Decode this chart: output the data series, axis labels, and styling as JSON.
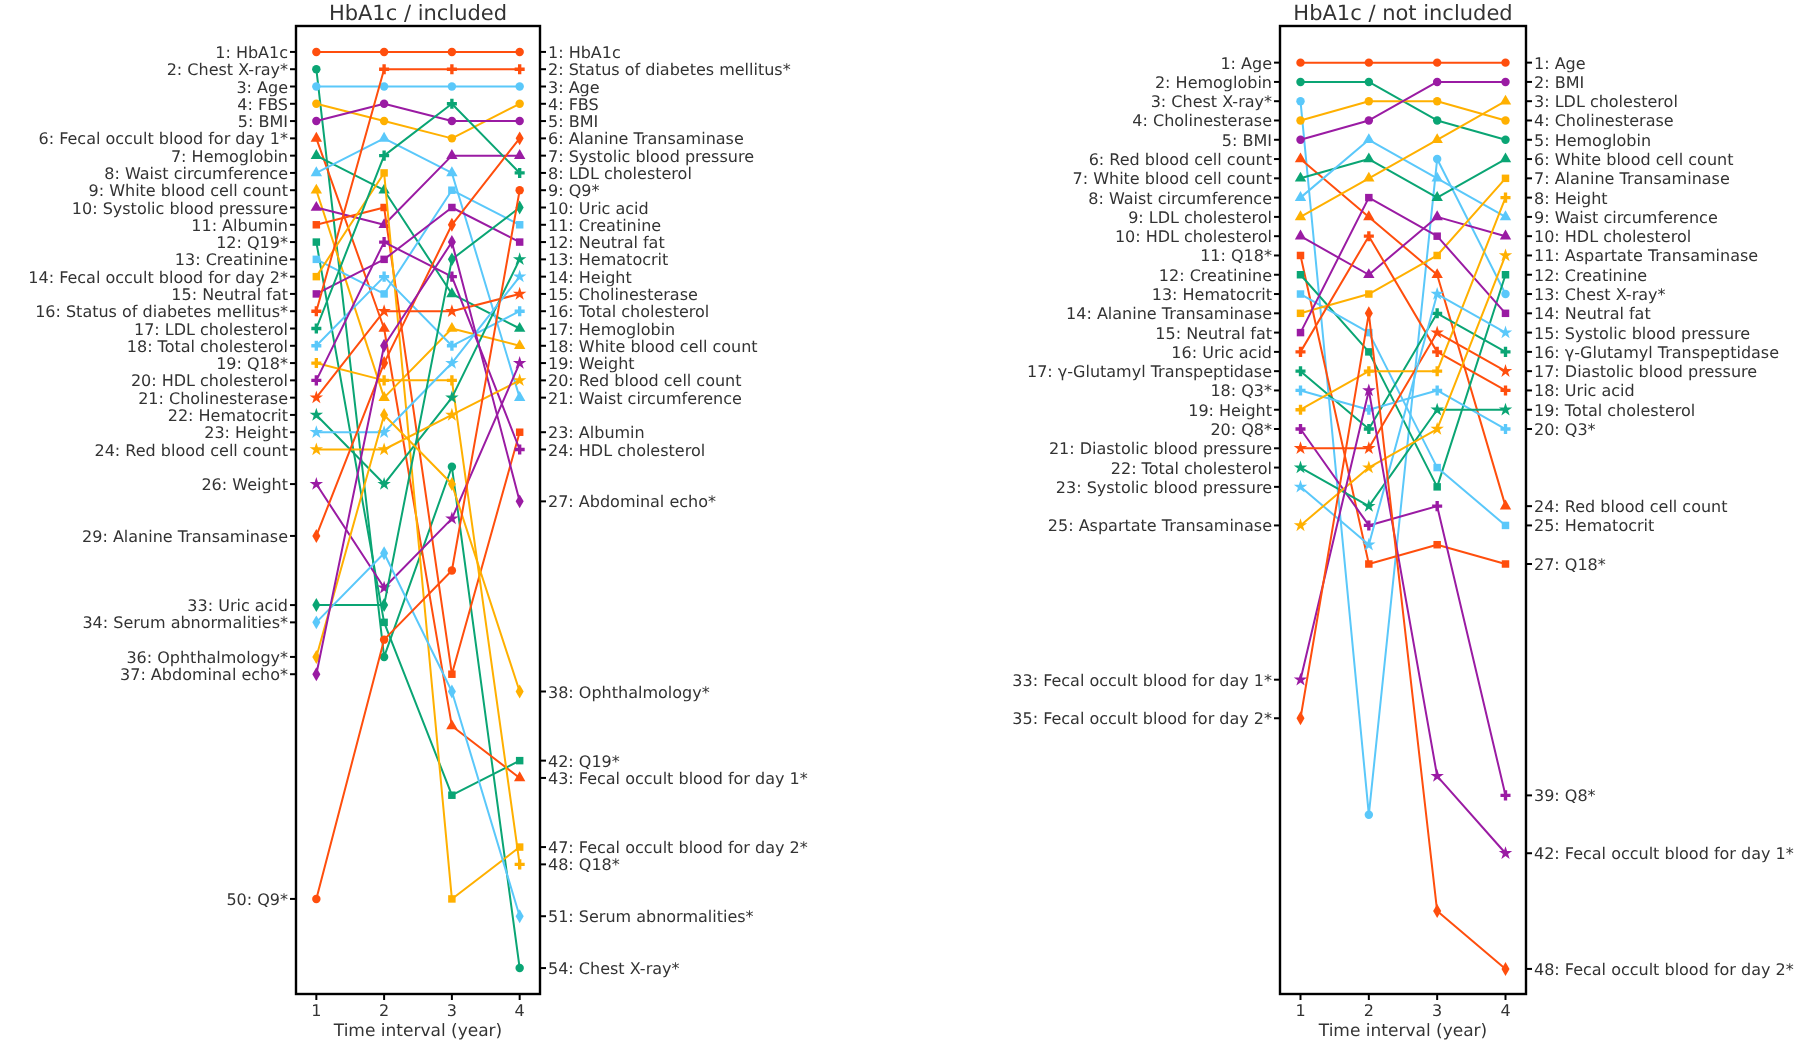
{
  "chart_data": [
    {
      "type": "line",
      "title": "HbA1c / included",
      "xlabel": "Time interval (year)",
      "x": [
        1,
        2,
        3,
        4
      ],
      "xlim": [
        0.7,
        4.3
      ],
      "xticks": [
        1,
        2,
        3,
        4
      ],
      "ylim": [
        55.5,
        -0.5
      ],
      "y2lim": [
        55.5,
        -0.5
      ],
      "grid": false,
      "line_style": "solid",
      "yticks": [
        {
          "value": 1,
          "label": "1: HbA1c"
        },
        {
          "value": 2,
          "label": "2: Chest X-ray*"
        },
        {
          "value": 3,
          "label": "3: Age"
        },
        {
          "value": 4,
          "label": "4: FBS"
        },
        {
          "value": 5,
          "label": "5: BMI"
        },
        {
          "value": 6,
          "label": "6: Fecal occult blood for day 1*"
        },
        {
          "value": 7,
          "label": "7: Hemoglobin"
        },
        {
          "value": 8,
          "label": "8: Waist circumference"
        },
        {
          "value": 9,
          "label": "9: White blood cell count"
        },
        {
          "value": 10,
          "label": "10: Systolic blood pressure"
        },
        {
          "value": 11,
          "label": "11: Albumin"
        },
        {
          "value": 12,
          "label": "12: Q19*"
        },
        {
          "value": 13,
          "label": "13: Creatinine"
        },
        {
          "value": 14,
          "label": "14: Fecal occult blood for day 2*"
        },
        {
          "value": 15,
          "label": "15: Neutral fat"
        },
        {
          "value": 16,
          "label": "16: Status of diabetes mellitus*"
        },
        {
          "value": 17,
          "label": "17: LDL cholesterol"
        },
        {
          "value": 18,
          "label": "18: Total cholesterol"
        },
        {
          "value": 19,
          "label": "19: Q18*"
        },
        {
          "value": 20,
          "label": "20: HDL cholesterol"
        },
        {
          "value": 21,
          "label": "21: Cholinesterase"
        },
        {
          "value": 22,
          "label": "22: Hematocrit"
        },
        {
          "value": 23,
          "label": "23: Height"
        },
        {
          "value": 24,
          "label": "24: Red blood cell count"
        },
        {
          "value": 26,
          "label": "26: Weight"
        },
        {
          "value": 29,
          "label": "29: Alanine Transaminase"
        },
        {
          "value": 33,
          "label": "33: Uric acid"
        },
        {
          "value": 34,
          "label": "34: Serum abnormalities*"
        },
        {
          "value": 36,
          "label": "36: Ophthalmology*"
        },
        {
          "value": 37,
          "label": "37: Abdominal echo*"
        },
        {
          "value": 50,
          "label": "50: Q9*"
        }
      ],
      "y2ticks": [
        {
          "value": 1,
          "label": "1: HbA1c"
        },
        {
          "value": 2,
          "label": "2: Status of diabetes mellitus*"
        },
        {
          "value": 3,
          "label": "3: Age"
        },
        {
          "value": 4,
          "label": "4: FBS"
        },
        {
          "value": 5,
          "label": "5: BMI"
        },
        {
          "value": 6,
          "label": "6: Alanine Transaminase"
        },
        {
          "value": 7,
          "label": "7: Systolic blood pressure"
        },
        {
          "value": 8,
          "label": "8: LDL cholesterol"
        },
        {
          "value": 9,
          "label": "9: Q9*"
        },
        {
          "value": 10,
          "label": "10: Uric acid"
        },
        {
          "value": 11,
          "label": "11: Creatinine"
        },
        {
          "value": 12,
          "label": "12: Neutral fat"
        },
        {
          "value": 13,
          "label": "13: Hematocrit"
        },
        {
          "value": 14,
          "label": "14: Height"
        },
        {
          "value": 15,
          "label": "15: Cholinesterase"
        },
        {
          "value": 16,
          "label": "16: Total cholesterol"
        },
        {
          "value": 17,
          "label": "17: Hemoglobin"
        },
        {
          "value": 18,
          "label": "18: White blood cell count"
        },
        {
          "value": 19,
          "label": "19: Weight"
        },
        {
          "value": 20,
          "label": "20: Red blood cell count"
        },
        {
          "value": 21,
          "label": "21: Waist circumference"
        },
        {
          "value": 23,
          "label": "23: Albumin"
        },
        {
          "value": 24,
          "label": "24: HDL cholesterol"
        },
        {
          "value": 27,
          "label": "27: Abdominal echo*"
        },
        {
          "value": 38,
          "label": "38: Ophthalmology*"
        },
        {
          "value": 42,
          "label": "42: Q19*"
        },
        {
          "value": 43,
          "label": "43: Fecal occult blood for day 1*"
        },
        {
          "value": 47,
          "label": "47: Fecal occult blood for day 2*"
        },
        {
          "value": 48,
          "label": "48: Q18*"
        },
        {
          "value": 51,
          "label": "51: Serum abnormalities*"
        },
        {
          "value": 54,
          "label": "54: Chest X-ray*"
        }
      ],
      "series": [
        {
          "color": "#ff4e0d",
          "marker": "circle",
          "values": [
            1,
            1,
            1,
            1
          ]
        },
        {
          "color": "#0aa574",
          "marker": "circle",
          "values": [
            2,
            36,
            25,
            54
          ]
        },
        {
          "color": "#5ac8fa",
          "marker": "circle",
          "values": [
            3,
            3,
            3,
            3
          ]
        },
        {
          "color": "#ffb000",
          "marker": "circle",
          "values": [
            4,
            5,
            6,
            4
          ]
        },
        {
          "color": "#9a1ba3",
          "marker": "circle",
          "values": [
            5,
            4,
            5,
            5
          ]
        },
        {
          "color": "#ff4e0d",
          "marker": "triangle",
          "values": [
            6,
            17,
            40,
            43
          ]
        },
        {
          "color": "#0aa574",
          "marker": "triangle",
          "values": [
            7,
            9,
            15,
            17
          ]
        },
        {
          "color": "#5ac8fa",
          "marker": "triangle",
          "values": [
            8,
            6,
            8,
            21
          ]
        },
        {
          "color": "#ffb000",
          "marker": "triangle",
          "values": [
            9,
            21,
            17,
            18
          ]
        },
        {
          "color": "#9a1ba3",
          "marker": "triangle",
          "values": [
            10,
            11,
            7,
            7
          ]
        },
        {
          "color": "#ff4e0d",
          "marker": "square",
          "values": [
            11,
            10,
            37,
            23
          ]
        },
        {
          "color": "#0aa574",
          "marker": "square",
          "values": [
            12,
            34,
            44,
            42
          ]
        },
        {
          "color": "#5ac8fa",
          "marker": "square",
          "values": [
            13,
            15,
            9,
            11
          ]
        },
        {
          "color": "#ffb000",
          "marker": "square",
          "values": [
            14,
            8,
            50,
            47
          ]
        },
        {
          "color": "#9a1ba3",
          "marker": "square",
          "values": [
            15,
            13,
            10,
            12
          ]
        },
        {
          "color": "#ff4e0d",
          "marker": "cross",
          "values": [
            16,
            2,
            2,
            2
          ]
        },
        {
          "color": "#0aa574",
          "marker": "cross",
          "values": [
            17,
            7,
            4,
            8
          ]
        },
        {
          "color": "#5ac8fa",
          "marker": "cross",
          "values": [
            18,
            14,
            18,
            16
          ]
        },
        {
          "color": "#ffb000",
          "marker": "cross",
          "values": [
            19,
            20,
            20,
            48
          ]
        },
        {
          "color": "#9a1ba3",
          "marker": "cross",
          "values": [
            20,
            12,
            14,
            24
          ]
        },
        {
          "color": "#ff4e0d",
          "marker": "star",
          "values": [
            21,
            16,
            16,
            15
          ]
        },
        {
          "color": "#0aa574",
          "marker": "star",
          "values": [
            22,
            26,
            21,
            13
          ]
        },
        {
          "color": "#5ac8fa",
          "marker": "star",
          "values": [
            23,
            23,
            19,
            14
          ]
        },
        {
          "color": "#ffb000",
          "marker": "star",
          "values": [
            24,
            24,
            22,
            20
          ]
        },
        {
          "color": "#9a1ba3",
          "marker": "star",
          "values": [
            26,
            32,
            28,
            19
          ]
        },
        {
          "color": "#ff4e0d",
          "marker": "diamond",
          "values": [
            29,
            19,
            11,
            6
          ]
        },
        {
          "color": "#0aa574",
          "marker": "diamond",
          "values": [
            33,
            33,
            13,
            10
          ]
        },
        {
          "color": "#5ac8fa",
          "marker": "diamond",
          "values": [
            34,
            30,
            38,
            51
          ]
        },
        {
          "color": "#ffb000",
          "marker": "diamond",
          "values": [
            36,
            22,
            26,
            38
          ]
        },
        {
          "color": "#9a1ba3",
          "marker": "diamond",
          "values": [
            37,
            18,
            12,
            27
          ]
        },
        {
          "color": "#ff4e0d",
          "marker": "circle",
          "values": [
            50,
            35,
            31,
            9
          ]
        }
      ]
    },
    {
      "type": "line",
      "title": "HbA1c / not included",
      "xlabel": "Time interval (year)",
      "x": [
        1,
        2,
        3,
        4
      ],
      "xlim": [
        0.7,
        4.3
      ],
      "xticks": [
        1,
        2,
        3,
        4
      ],
      "ylim": [
        49.3,
        -0.9
      ],
      "y2lim": [
        49.3,
        -0.9
      ],
      "grid": false,
      "line_style": "solid",
      "yticks": [
        {
          "value": 1,
          "label": "1: Age"
        },
        {
          "value": 2,
          "label": "2: Hemoglobin"
        },
        {
          "value": 3,
          "label": "3: Chest X-ray*"
        },
        {
          "value": 4,
          "label": "4: Cholinesterase"
        },
        {
          "value": 5,
          "label": "5: BMI"
        },
        {
          "value": 6,
          "label": "6: Red blood cell count"
        },
        {
          "value": 7,
          "label": "7: White blood cell count"
        },
        {
          "value": 8,
          "label": "8: Waist circumference"
        },
        {
          "value": 9,
          "label": "9: LDL cholesterol"
        },
        {
          "value": 10,
          "label": "10: HDL cholesterol"
        },
        {
          "value": 11,
          "label": "11: Q18*"
        },
        {
          "value": 12,
          "label": "12: Creatinine"
        },
        {
          "value": 13,
          "label": "13: Hematocrit"
        },
        {
          "value": 14,
          "label": "14: Alanine Transaminase"
        },
        {
          "value": 15,
          "label": "15: Neutral fat"
        },
        {
          "value": 16,
          "label": "16: Uric acid"
        },
        {
          "value": 17,
          "label": "17: γ-Glutamyl Transpeptidase"
        },
        {
          "value": 18,
          "label": "18: Q3*"
        },
        {
          "value": 19,
          "label": "19: Height"
        },
        {
          "value": 20,
          "label": "20: Q8*"
        },
        {
          "value": 21,
          "label": "21: Diastolic blood pressure"
        },
        {
          "value": 22,
          "label": "22: Total cholesterol"
        },
        {
          "value": 23,
          "label": "23: Systolic blood pressure"
        },
        {
          "value": 25,
          "label": "25: Aspartate Transaminase"
        },
        {
          "value": 33,
          "label": "33: Fecal occult blood for day 1*"
        },
        {
          "value": 35,
          "label": "35: Fecal occult blood for day 2*"
        }
      ],
      "y2ticks": [
        {
          "value": 1,
          "label": "1: Age"
        },
        {
          "value": 2,
          "label": "2: BMI"
        },
        {
          "value": 3,
          "label": "3: LDL cholesterol"
        },
        {
          "value": 4,
          "label": "4: Cholinesterase"
        },
        {
          "value": 5,
          "label": "5: Hemoglobin"
        },
        {
          "value": 6,
          "label": "6: White blood cell count"
        },
        {
          "value": 7,
          "label": "7: Alanine Transaminase"
        },
        {
          "value": 8,
          "label": "8: Height"
        },
        {
          "value": 9,
          "label": "9: Waist circumference"
        },
        {
          "value": 10,
          "label": "10: HDL cholesterol"
        },
        {
          "value": 11,
          "label": "11: Aspartate Transaminase"
        },
        {
          "value": 12,
          "label": "12: Creatinine"
        },
        {
          "value": 13,
          "label": "13: Chest X-ray*"
        },
        {
          "value": 14,
          "label": "14: Neutral fat"
        },
        {
          "value": 15,
          "label": "15: Systolic blood pressure"
        },
        {
          "value": 16,
          "label": "16: γ-Glutamyl Transpeptidase"
        },
        {
          "value": 17,
          "label": "17: Diastolic blood pressure"
        },
        {
          "value": 18,
          "label": "18: Uric acid"
        },
        {
          "value": 19,
          "label": "19: Total cholesterol"
        },
        {
          "value": 20,
          "label": "20: Q3*"
        },
        {
          "value": 24,
          "label": "24: Red blood cell count"
        },
        {
          "value": 25,
          "label": "25: Hematocrit"
        },
        {
          "value": 27,
          "label": "27: Q18*"
        },
        {
          "value": 39,
          "label": "39: Q8*"
        },
        {
          "value": 42,
          "label": "42: Fecal occult blood for day 1*"
        },
        {
          "value": 48,
          "label": "48: Fecal occult blood for day 2*"
        }
      ],
      "series": [
        {
          "color": "#ff4e0d",
          "marker": "circle",
          "values": [
            1,
            1,
            1,
            1
          ]
        },
        {
          "color": "#0aa574",
          "marker": "circle",
          "values": [
            2,
            2,
            4,
            5
          ]
        },
        {
          "color": "#5ac8fa",
          "marker": "circle",
          "values": [
            3,
            40,
            6,
            13
          ]
        },
        {
          "color": "#ffb000",
          "marker": "circle",
          "values": [
            4,
            3,
            3,
            4
          ]
        },
        {
          "color": "#9a1ba3",
          "marker": "circle",
          "values": [
            5,
            4,
            2,
            2
          ]
        },
        {
          "color": "#ff4e0d",
          "marker": "triangle",
          "values": [
            6,
            9,
            12,
            24
          ]
        },
        {
          "color": "#0aa574",
          "marker": "triangle",
          "values": [
            7,
            6,
            8,
            6
          ]
        },
        {
          "color": "#5ac8fa",
          "marker": "triangle",
          "values": [
            8,
            5,
            7,
            9
          ]
        },
        {
          "color": "#ffb000",
          "marker": "triangle",
          "values": [
            9,
            7,
            5,
            3
          ]
        },
        {
          "color": "#9a1ba3",
          "marker": "triangle",
          "values": [
            10,
            12,
            9,
            10
          ]
        },
        {
          "color": "#ff4e0d",
          "marker": "square",
          "values": [
            11,
            27,
            26,
            27
          ]
        },
        {
          "color": "#0aa574",
          "marker": "square",
          "values": [
            12,
            16,
            23,
            12
          ]
        },
        {
          "color": "#5ac8fa",
          "marker": "square",
          "values": [
            13,
            15,
            22,
            25
          ]
        },
        {
          "color": "#ffb000",
          "marker": "square",
          "values": [
            14,
            13,
            11,
            7
          ]
        },
        {
          "color": "#9a1ba3",
          "marker": "square",
          "values": [
            15,
            8,
            10,
            14
          ]
        },
        {
          "color": "#ff4e0d",
          "marker": "cross",
          "values": [
            16,
            10,
            16,
            18
          ]
        },
        {
          "color": "#0aa574",
          "marker": "cross",
          "values": [
            17,
            20,
            14,
            16
          ]
        },
        {
          "color": "#5ac8fa",
          "marker": "cross",
          "values": [
            18,
            19,
            18,
            20
          ]
        },
        {
          "color": "#ffb000",
          "marker": "cross",
          "values": [
            19,
            17,
            17,
            8
          ]
        },
        {
          "color": "#9a1ba3",
          "marker": "cross",
          "values": [
            20,
            25,
            24,
            39
          ]
        },
        {
          "color": "#ff4e0d",
          "marker": "star",
          "values": [
            21,
            21,
            15,
            17
          ]
        },
        {
          "color": "#0aa574",
          "marker": "star",
          "values": [
            22,
            24,
            19,
            19
          ]
        },
        {
          "color": "#5ac8fa",
          "marker": "star",
          "values": [
            23,
            26,
            13,
            15
          ]
        },
        {
          "color": "#ffb000",
          "marker": "star",
          "values": [
            25,
            22,
            20,
            11
          ]
        },
        {
          "color": "#9a1ba3",
          "marker": "star",
          "values": [
            33,
            18,
            38,
            42
          ]
        },
        {
          "color": "#ff4e0d",
          "marker": "diamond",
          "values": [
            35,
            14,
            45,
            48
          ]
        }
      ]
    }
  ]
}
